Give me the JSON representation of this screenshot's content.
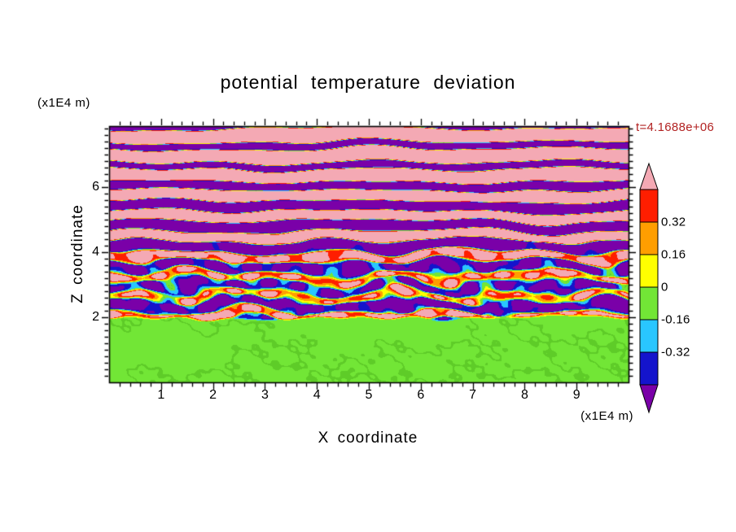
{
  "title": "potential temperature deviation",
  "timestamp": {
    "text": "t=4.1688e+06",
    "color": "#b22222"
  },
  "axes": {
    "x_label": "X coordinate",
    "x_unit": "(x1E4 m)",
    "z_label": "Z coordinate",
    "z_unit": "(x1E4 m)",
    "x_ticks": [
      "1",
      "2",
      "3",
      "4",
      "5",
      "6",
      "7",
      "8",
      "9"
    ],
    "z_ticks": [
      "2",
      "4",
      "6"
    ]
  },
  "colorbar": {
    "labels": [
      "0.32",
      "0.16",
      "0",
      "-0.16",
      "-0.32"
    ]
  },
  "chart_data": {
    "type": "heatmap",
    "title": "potential temperature deviation",
    "xlabel": "X coordinate (x1E4 m)",
    "ylabel": "Z coordinate (x1E4 m)",
    "time_annotation": "t=4.1688e+06",
    "x_range": [
      0,
      10
    ],
    "z_range": [
      0,
      7.875
    ],
    "x_tick_values": [
      1,
      2,
      3,
      4,
      5,
      6,
      7,
      8,
      9
    ],
    "z_tick_values": [
      2,
      4,
      6
    ],
    "minor_tick_step": 0.2,
    "contour_levels": [
      -0.48,
      -0.32,
      -0.16,
      0,
      0.16,
      0.32,
      0.48
    ],
    "colorbar_tick_values": [
      0.32,
      0.16,
      0,
      -0.16,
      -0.32
    ],
    "palette": [
      "#7a00a8",
      "#1414cc",
      "#29c6ff",
      "#72e636",
      "#ffff00",
      "#ff9e00",
      "#ff1e00",
      "#f4a9b4"
    ],
    "palette_meaning": [
      "< -0.48",
      "-0.48 to -0.32",
      "-0.32 to -0.16",
      "-0.16 to 0",
      "0 to 0.16",
      "0.16 to 0.32",
      "0.32 to 0.48",
      "> 0.48"
    ],
    "field": {
      "description": "Stratified turbulent shear layer: alternating strongly positive (pink) and strongly negative (purple) horizontal theta-deviation bands above z~2e4 m, with vigorous small-scale mixing (red/orange/yellow/cyan/blue filaments) concentrated near z~2-4.5e4 m, over a nearly uniform slightly-negative (green) well-mixed layer below z~2e4 m.",
      "band_period": 0.62,
      "band_amplitude": 0.72,
      "interface_z": 1.97,
      "turb_center": 2.9,
      "turb_width": 1.3,
      "mixed_value": -0.07,
      "top_pink_bias": 0.5
    }
  }
}
